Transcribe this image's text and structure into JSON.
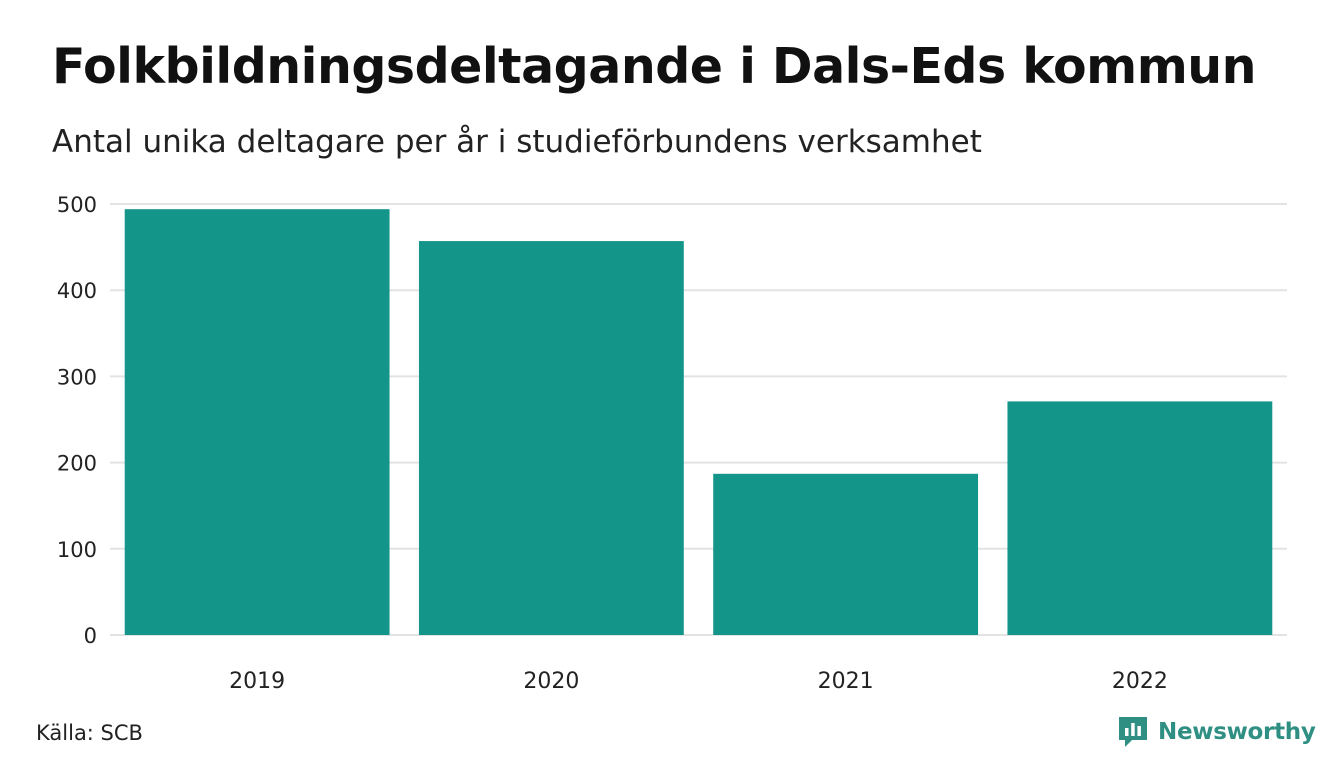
{
  "chart_data": {
    "type": "bar",
    "title": "Folkbildningsdeltagande i Dals-Eds kommun",
    "subtitle": "Antal unika deltagare per år i studieförbundens verksamhet",
    "categories": [
      "2019",
      "2020",
      "2021",
      "2022"
    ],
    "values": [
      494,
      457,
      187,
      271
    ],
    "xlabel": "",
    "ylabel": "",
    "ylim": [
      0,
      500
    ],
    "yticks": [
      0,
      100,
      200,
      300,
      400,
      500
    ],
    "grid": true,
    "legend": "none",
    "bar_color": "#14958a",
    "grid_color": "#e3e3e3"
  },
  "footer": {
    "source": "Källa: SCB",
    "brand": "Newsworthy",
    "brand_icon": "newsworthy-logo-icon",
    "brand_color": "#2f8f83"
  }
}
